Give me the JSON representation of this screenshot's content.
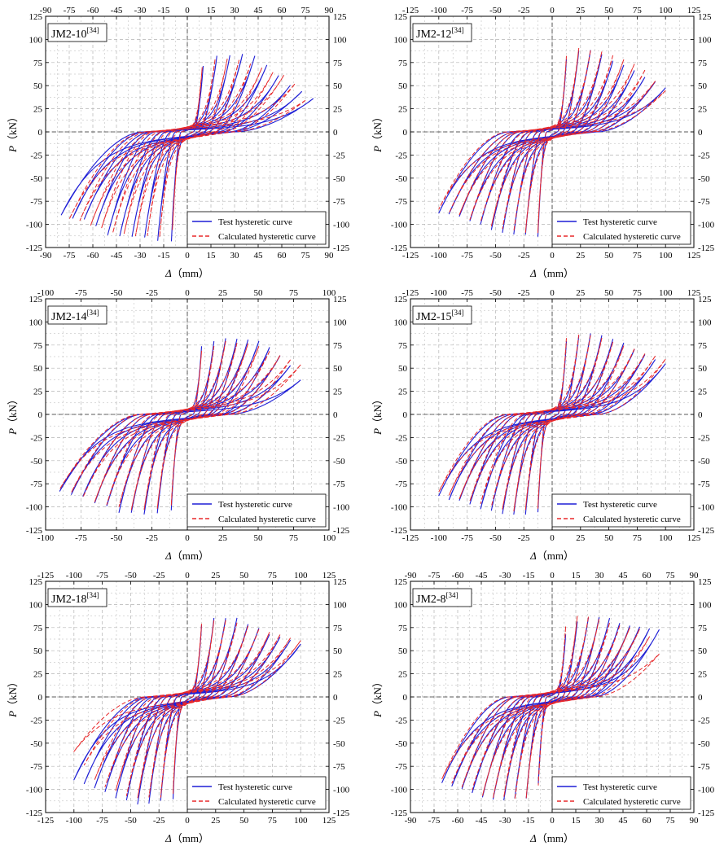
{
  "figure": {
    "y_axis_label_italic": "P",
    "y_axis_label_rest": "（kN）",
    "x_axis_label_italic": "Δ",
    "x_axis_label_rest": "（mm）",
    "colors": {
      "test": "#1f1fd6",
      "calc": "#e8282a",
      "grid": "#b4b4b4",
      "zero": "#333333"
    }
  },
  "chart_data": [
    {
      "type": "line",
      "title": "JM2-10",
      "title_ref": "[34]",
      "xlabel": "Δ（mm）",
      "ylabel": "P（kN）",
      "xlim": [
        -90,
        90
      ],
      "ylim": [
        -125,
        125
      ],
      "xticks": [
        -90,
        -75,
        -60,
        -45,
        -30,
        -15,
        0,
        15,
        30,
        45,
        60,
        75,
        90
      ],
      "yticks": [
        -125,
        -100,
        -75,
        -50,
        -25,
        0,
        25,
        50,
        75,
        100,
        125
      ],
      "grid": true,
      "legend": [
        "Test hysteretic curve",
        "Calculated hysteretic curve"
      ],
      "legend_position": "bottom-right",
      "series": [
        {
          "name": "Test hysteretic curve",
          "style": "solid",
          "envelope_pos": [
            [
              0,
              0
            ],
            [
              10,
              72
            ],
            [
              20,
              84
            ],
            [
              40,
              86
            ],
            [
              50,
              74
            ],
            [
              65,
              52
            ],
            [
              80,
              37
            ]
          ],
          "envelope_neg": [
            [
              0,
              0
            ],
            [
              -10,
              -118
            ],
            [
              -20,
              -120
            ],
            [
              -35,
              -114
            ],
            [
              -50,
              -114
            ],
            [
              -65,
              -96
            ],
            [
              -80,
              -92
            ]
          ]
        },
        {
          "name": "Calculated hysteretic curve",
          "style": "dashed",
          "envelope_pos": [
            [
              0,
              0
            ],
            [
              10,
              75
            ],
            [
              20,
              82
            ],
            [
              35,
              78
            ],
            [
              50,
              68
            ],
            [
              65,
              60
            ],
            [
              75,
              35
            ]
          ],
          "envelope_neg": [
            [
              0,
              0
            ],
            [
              -10,
              -112
            ],
            [
              -20,
              -115
            ],
            [
              -35,
              -112
            ],
            [
              -50,
              -110
            ],
            [
              -65,
              -98
            ],
            [
              -75,
              -96
            ]
          ]
        }
      ]
    },
    {
      "type": "line",
      "title": "JM2-12",
      "title_ref": "[34]",
      "xlabel": "Δ（mm）",
      "ylabel": "P（kN）",
      "xlim": [
        -125,
        125
      ],
      "ylim": [
        -125,
        125
      ],
      "xticks": [
        -125,
        -100,
        -75,
        -50,
        -25,
        0,
        25,
        50,
        75,
        100,
        125
      ],
      "yticks": [
        -125,
        -100,
        -75,
        -50,
        -25,
        0,
        25,
        50,
        75,
        100,
        125
      ],
      "grid": true,
      "legend": [
        "Test hysteretic curve",
        "Calculated hysteretic curve"
      ],
      "legend_position": "bottom-right",
      "series": [
        {
          "name": "Test hysteretic curve",
          "style": "solid",
          "envelope_pos": [
            [
              0,
              0
            ],
            [
              10,
              78
            ],
            [
              20,
              90
            ],
            [
              40,
              88
            ],
            [
              60,
              75
            ],
            [
              80,
              62
            ],
            [
              100,
              48
            ]
          ],
          "envelope_neg": [
            [
              0,
              0
            ],
            [
              -10,
              -114
            ],
            [
              -25,
              -114
            ],
            [
              -45,
              -110
            ],
            [
              -60,
              -104
            ],
            [
              -80,
              -92
            ],
            [
              -100,
              -90
            ]
          ]
        },
        {
          "name": "Calculated hysteretic curve",
          "style": "dashed",
          "envelope_pos": [
            [
              0,
              0
            ],
            [
              10,
              82
            ],
            [
              20,
              92
            ],
            [
              40,
              90
            ],
            [
              60,
              80
            ],
            [
              80,
              70
            ],
            [
              100,
              45
            ]
          ],
          "envelope_neg": [
            [
              0,
              0
            ],
            [
              -10,
              -110
            ],
            [
              -25,
              -110
            ],
            [
              -45,
              -105
            ],
            [
              -60,
              -100
            ],
            [
              -80,
              -92
            ],
            [
              -100,
              -85
            ]
          ]
        }
      ]
    },
    {
      "type": "line",
      "title": "JM2-14",
      "title_ref": "[34]",
      "xlabel": "Δ（mm）",
      "ylabel": "P（kN）",
      "xlim": [
        -100,
        100
      ],
      "ylim": [
        -125,
        125
      ],
      "xticks": [
        -100,
        -75,
        -50,
        -25,
        0,
        25,
        50,
        75,
        100
      ],
      "yticks": [
        -125,
        -100,
        -75,
        -50,
        -25,
        0,
        25,
        50,
        75,
        100,
        125
      ],
      "grid": true,
      "legend": [
        "Test hysteretic curve",
        "Calculated hysteretic curve"
      ],
      "legend_position": "bottom-right",
      "series": [
        {
          "name": "Test hysteretic curve",
          "style": "solid",
          "envelope_pos": [
            [
              0,
              0
            ],
            [
              10,
              75
            ],
            [
              25,
              83
            ],
            [
              40,
              84
            ],
            [
              55,
              78
            ],
            [
              70,
              60
            ],
            [
              80,
              38
            ]
          ],
          "envelope_neg": [
            [
              0,
              0
            ],
            [
              -10,
              -105
            ],
            [
              -25,
              -108
            ],
            [
              -45,
              -108
            ],
            [
              -60,
              -100
            ],
            [
              -75,
              -90
            ],
            [
              -90,
              -85
            ]
          ]
        },
        {
          "name": "Calculated hysteretic curve",
          "style": "dashed",
          "envelope_pos": [
            [
              0,
              0
            ],
            [
              10,
              70
            ],
            [
              25,
              80
            ],
            [
              40,
              78
            ],
            [
              55,
              72
            ],
            [
              70,
              62
            ],
            [
              80,
              55
            ]
          ],
          "envelope_neg": [
            [
              0,
              0
            ],
            [
              -10,
              -100
            ],
            [
              -25,
              -105
            ],
            [
              -45,
              -104
            ],
            [
              -60,
              -98
            ],
            [
              -75,
              -90
            ],
            [
              -90,
              -82
            ]
          ]
        }
      ]
    },
    {
      "type": "line",
      "title": "JM2-15",
      "title_ref": "[34]",
      "xlabel": "Δ（mm）",
      "ylabel": "P（kN）",
      "xlim": [
        -125,
        125
      ],
      "ylim": [
        -125,
        125
      ],
      "xticks": [
        -125,
        -100,
        -75,
        -50,
        -25,
        0,
        25,
        50,
        75,
        100,
        125
      ],
      "yticks": [
        -125,
        -100,
        -75,
        -50,
        -25,
        0,
        25,
        50,
        75,
        100,
        125
      ],
      "grid": true,
      "legend": [
        "Test hysteretic curve",
        "Calculated hysteretic curve"
      ],
      "legend_position": "bottom-right",
      "series": [
        {
          "name": "Test hysteretic curve",
          "style": "solid",
          "envelope_pos": [
            [
              0,
              0
            ],
            [
              10,
              78
            ],
            [
              25,
              88
            ],
            [
              40,
              90
            ],
            [
              60,
              80
            ],
            [
              80,
              66
            ],
            [
              100,
              55
            ]
          ],
          "envelope_neg": [
            [
              0,
              0
            ],
            [
              -10,
              -108
            ],
            [
              -25,
              -110
            ],
            [
              -45,
              -110
            ],
            [
              -60,
              -104
            ],
            [
              -80,
              -95
            ],
            [
              -100,
              -90
            ]
          ]
        },
        {
          "name": "Calculated hysteretic curve",
          "style": "dashed",
          "envelope_pos": [
            [
              0,
              0
            ],
            [
              10,
              82
            ],
            [
              25,
              88
            ],
            [
              40,
              86
            ],
            [
              60,
              78
            ],
            [
              80,
              68
            ],
            [
              100,
              60
            ]
          ],
          "envelope_neg": [
            [
              0,
              0
            ],
            [
              -10,
              -104
            ],
            [
              -25,
              -106
            ],
            [
              -45,
              -104
            ],
            [
              -60,
              -100
            ],
            [
              -80,
              -92
            ],
            [
              -100,
              -85
            ]
          ]
        }
      ]
    },
    {
      "type": "line",
      "title": "JM2-18",
      "title_ref": "[34]",
      "xlabel": "Δ（mm）",
      "ylabel": "P（kN）",
      "xlim": [
        -125,
        125
      ],
      "ylim": [
        -125,
        125
      ],
      "xticks": [
        -125,
        -100,
        -75,
        -50,
        -25,
        0,
        25,
        50,
        75,
        100,
        125
      ],
      "yticks": [
        -125,
        -100,
        -75,
        -50,
        -25,
        0,
        25,
        50,
        75,
        100,
        125
      ],
      "grid": true,
      "legend": [
        "Test hysteretic curve",
        "Calculated hysteretic curve"
      ],
      "legend_position": "bottom-right",
      "series": [
        {
          "name": "Test hysteretic curve",
          "style": "solid",
          "envelope_pos": [
            [
              0,
              0
            ],
            [
              10,
              78
            ],
            [
              25,
              87
            ],
            [
              40,
              88
            ],
            [
              60,
              76
            ],
            [
              80,
              66
            ],
            [
              100,
              58
            ]
          ],
          "envelope_neg": [
            [
              0,
              0
            ],
            [
              -10,
              -110
            ],
            [
              -25,
              -115
            ],
            [
              -45,
              -116
            ],
            [
              -60,
              -112
            ],
            [
              -80,
              -100
            ],
            [
              -100,
              -92
            ]
          ]
        },
        {
          "name": "Calculated hysteretic curve",
          "style": "dashed",
          "envelope_pos": [
            [
              0,
              0
            ],
            [
              10,
              80
            ],
            [
              25,
              86
            ],
            [
              40,
              84
            ],
            [
              60,
              76
            ],
            [
              80,
              70
            ],
            [
              100,
              62
            ]
          ],
          "envelope_neg": [
            [
              0,
              0
            ],
            [
              -10,
              -104
            ],
            [
              -25,
              -110
            ],
            [
              -45,
              -112
            ],
            [
              -60,
              -106
            ],
            [
              -80,
              -95
            ],
            [
              -100,
              -60
            ]
          ]
        }
      ]
    },
    {
      "type": "line",
      "title": "JM2-8",
      "title_ref": "[34]",
      "xlabel": "Δ（mm）",
      "ylabel": "P（kN）",
      "xlim": [
        -90,
        90
      ],
      "ylim": [
        -125,
        125
      ],
      "xticks": [
        -90,
        -75,
        -60,
        -45,
        -30,
        -15,
        0,
        15,
        30,
        45,
        60,
        75,
        90
      ],
      "yticks": [
        -125,
        -100,
        -75,
        -50,
        -25,
        0,
        25,
        50,
        75,
        100,
        125
      ],
      "grid": true,
      "legend": [
        "Test hysteretic curve",
        "Calculated hysteretic curve"
      ],
      "legend_position": "bottom-right",
      "series": [
        {
          "name": "Test hysteretic curve",
          "style": "solid",
          "envelope_pos": [
            [
              0,
              0
            ],
            [
              10,
              80
            ],
            [
              20,
              86
            ],
            [
              35,
              87
            ],
            [
              50,
              78
            ],
            [
              60,
              76
            ],
            [
              68,
              75
            ]
          ],
          "envelope_neg": [
            [
              0,
              0
            ],
            [
              -10,
              -108
            ],
            [
              -25,
              -112
            ],
            [
              -40,
              -112
            ],
            [
              -55,
              -104
            ],
            [
              -65,
              -96
            ],
            [
              -70,
              -95
            ]
          ]
        },
        {
          "name": "Calculated hysteretic curve",
          "style": "dashed",
          "envelope_pos": [
            [
              0,
              0
            ],
            [
              10,
              90
            ],
            [
              20,
              88
            ],
            [
              35,
              82
            ],
            [
              50,
              76
            ],
            [
              60,
              72
            ],
            [
              68,
              48
            ]
          ],
          "envelope_neg": [
            [
              0,
              0
            ],
            [
              -10,
              -110
            ],
            [
              -25,
              -112
            ],
            [
              -40,
              -110
            ],
            [
              -55,
              -100
            ],
            [
              -65,
              -94
            ],
            [
              -70,
              -90
            ]
          ]
        }
      ]
    }
  ]
}
